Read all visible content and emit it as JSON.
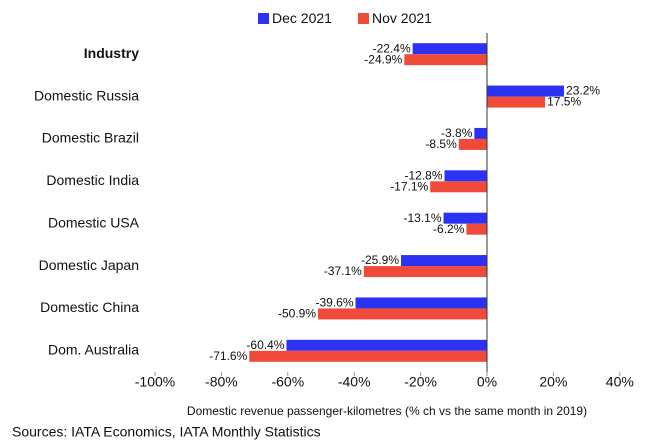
{
  "chart_data": {
    "type": "hbar",
    "categories": [
      "Industry",
      "Domestic Russia",
      "Domestic Brazil",
      "Domestic India",
      "Domestic USA",
      "Domestic Japan",
      "Domestic China",
      "Dom. Australia"
    ],
    "series": [
      {
        "name": "Dec 2021",
        "color": "#2b32f2",
        "values": [
          -22.4,
          23.2,
          -3.8,
          -12.8,
          -13.1,
          -25.9,
          -39.6,
          -60.4
        ],
        "value_labels": [
          "-22.4%",
          "23.2%",
          "-3.8%",
          "-12.8%",
          "-13.1%",
          "-25.9%",
          "-39.6%",
          "-60.4%"
        ]
      },
      {
        "name": "Nov 2021",
        "color": "#f04a3a",
        "values": [
          -24.9,
          17.5,
          -8.5,
          -17.1,
          -6.2,
          -37.1,
          -50.9,
          -71.6
        ],
        "value_labels": [
          "-24.9%",
          "17.5%",
          "-8.5%",
          "-17.1%",
          "-6.2%",
          "-37.1%",
          "-50.9%",
          "-71.6%"
        ]
      }
    ],
    "xlim": [
      -100,
      40
    ],
    "xticks": [
      {
        "value": -100,
        "label": "-100%"
      },
      {
        "value": -80,
        "label": "-80%"
      },
      {
        "value": -60,
        "label": "-60%"
      },
      {
        "value": -40,
        "label": "-40%"
      },
      {
        "value": -20,
        "label": "-20%"
      },
      {
        "value": 0,
        "label": "0%"
      },
      {
        "value": 20,
        "label": "20%"
      },
      {
        "value": 40,
        "label": "40%"
      }
    ],
    "x_label": "Domestic revenue passenger-kilometres (% ch vs the same month in 2019)",
    "source": "Sources: IATA Economics, IATA Monthly Statistics",
    "legend": "top"
  }
}
